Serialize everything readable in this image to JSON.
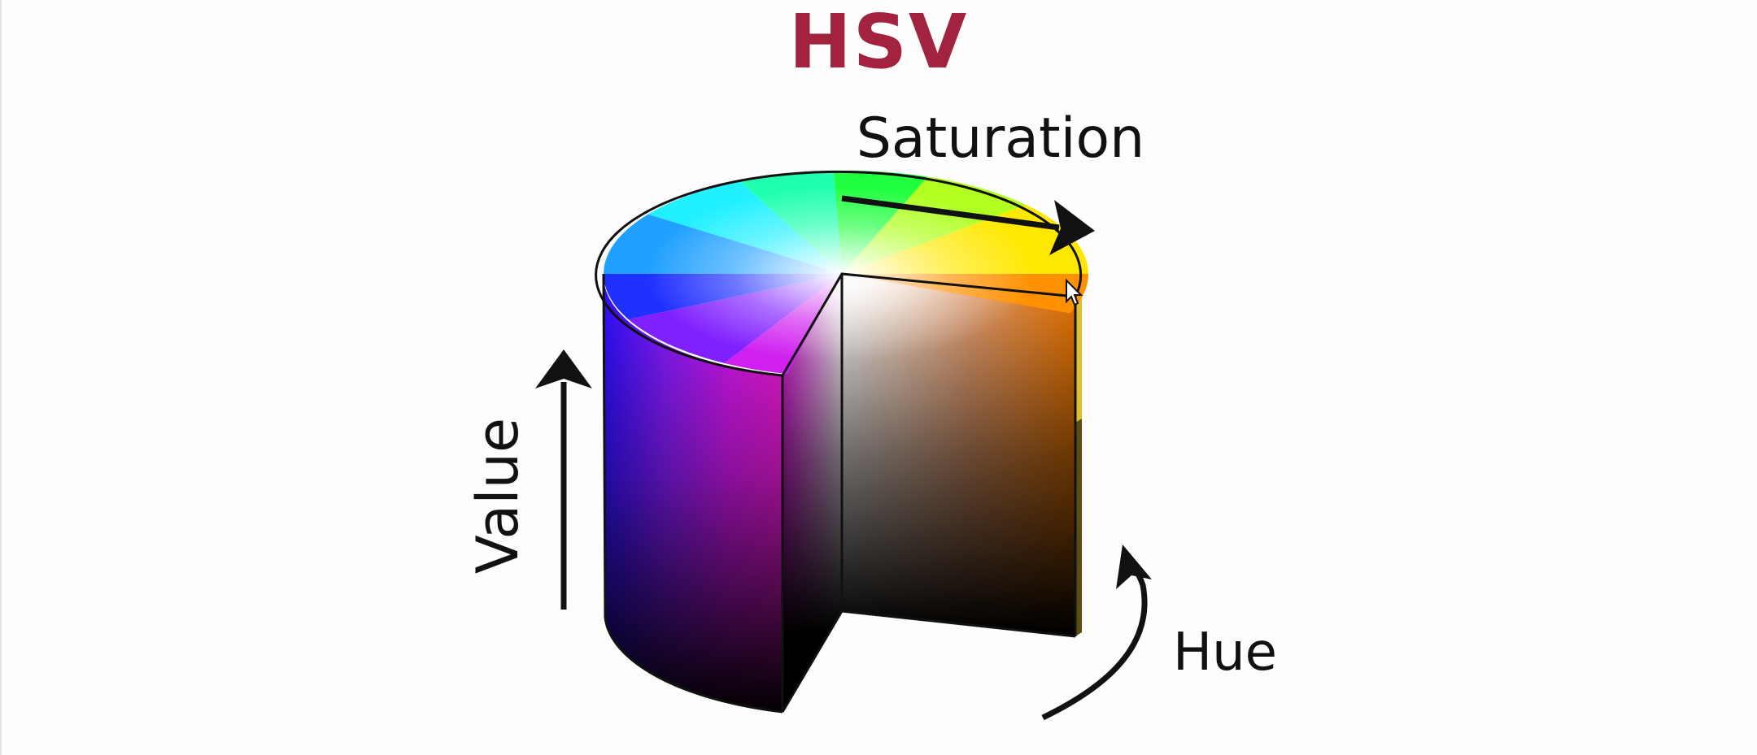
{
  "title": "HSV",
  "labels": {
    "saturation": "Saturation",
    "value": "Value",
    "hue": "Hue"
  },
  "colors": {
    "title": "#a3223f",
    "text": "#111111",
    "background": "#fdfdfd"
  },
  "icons": [
    "mouse-cursor-icon"
  ]
}
